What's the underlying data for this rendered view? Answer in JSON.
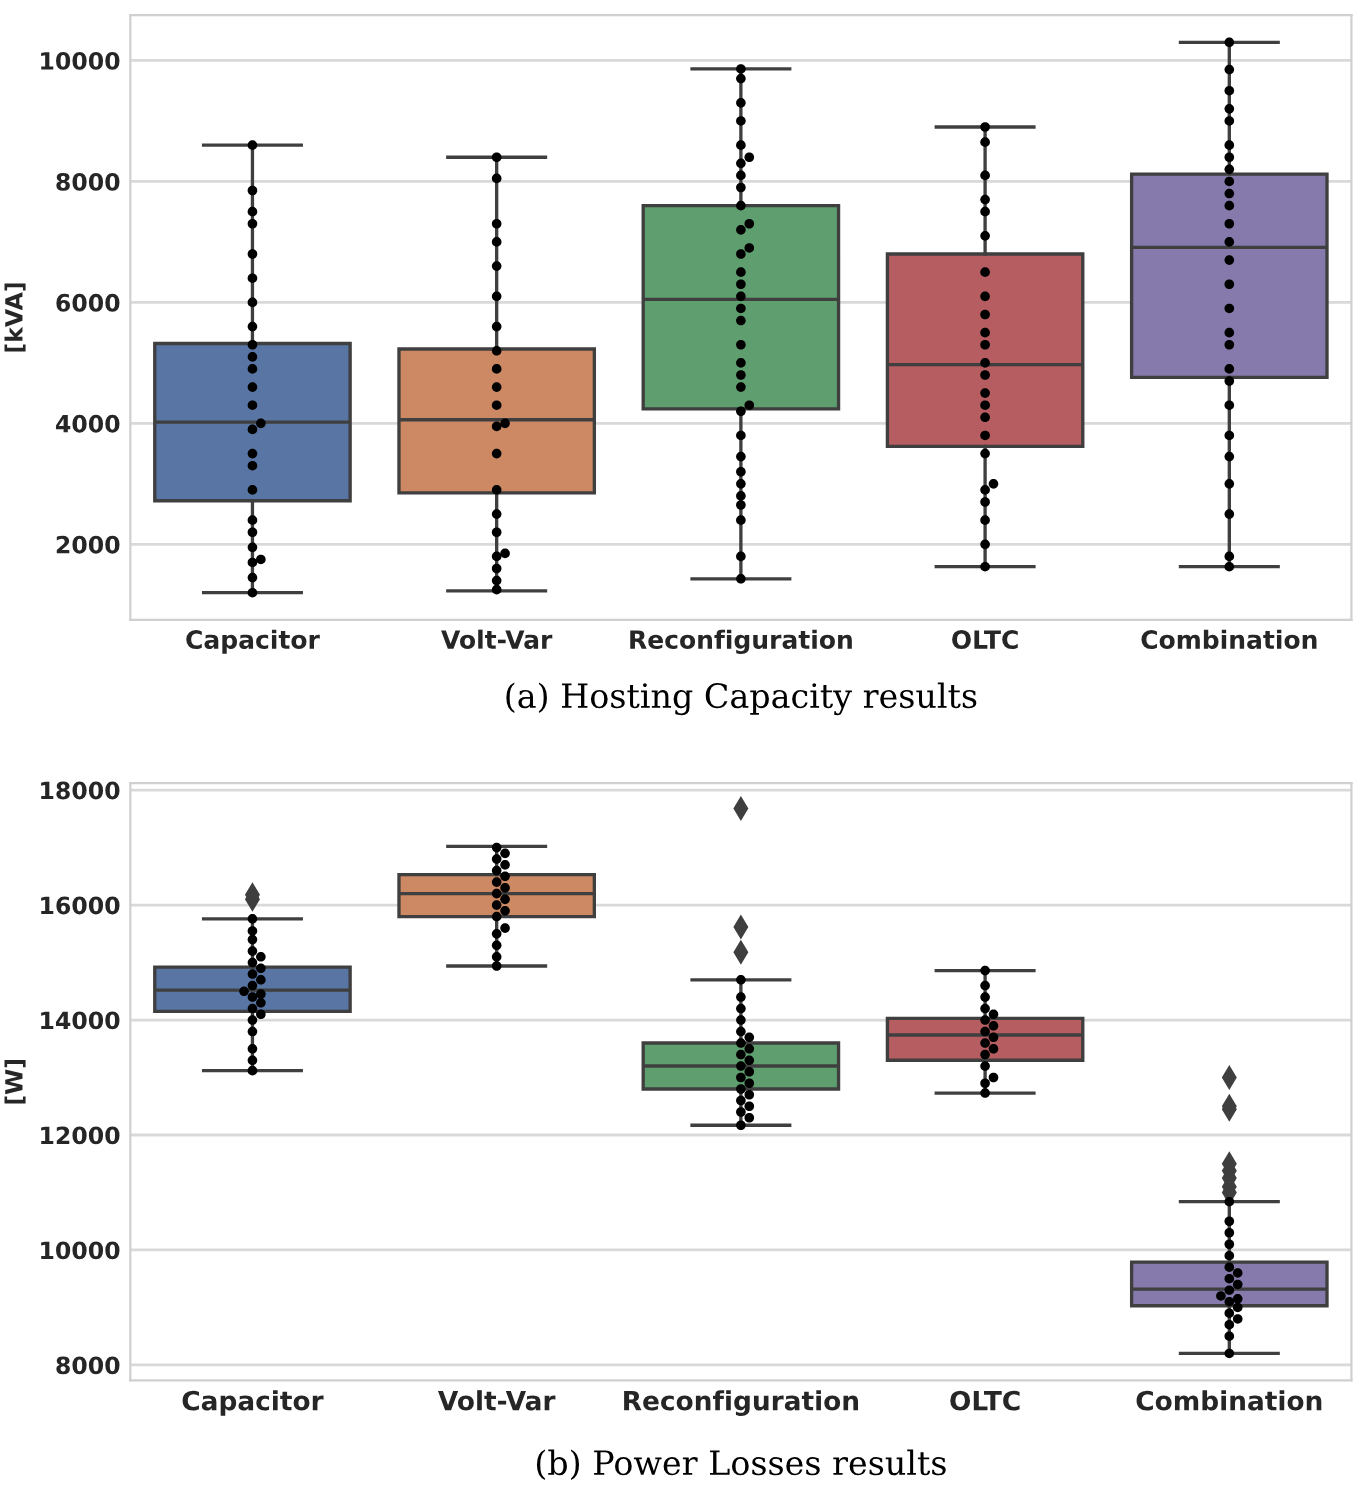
{
  "chart_data": [
    {
      "type": "box",
      "ylabel": "[kVA]",
      "annotations": [
        "(a) Hosting Capacity results"
      ],
      "categories": [
        "Capacitor",
        "Volt-Var",
        "Reconfiguration",
        "OLTC",
        "Combination"
      ],
      "colors": [
        "#5875a4",
        "#cc8963",
        "#5f9e6e",
        "#b55d60",
        "#857aab"
      ],
      "boxes": [
        {
          "low": 1200,
          "q1": 2720,
          "median": 4020,
          "q3": 5320,
          "high": 8600
        },
        {
          "low": 1230,
          "q1": 2850,
          "median": 4060,
          "q3": 5230,
          "high": 8400
        },
        {
          "low": 1430,
          "q1": 4240,
          "median": 6050,
          "q3": 7600,
          "high": 9860
        },
        {
          "low": 1630,
          "q1": 3620,
          "median": 4970,
          "q3": 6800,
          "high": 8900
        },
        {
          "low": 1630,
          "q1": 4760,
          "median": 6910,
          "q3": 8120,
          "high": 10300
        }
      ],
      "series": [
        {
          "type": "scatter",
          "color": "#000000",
          "marker": "circle",
          "x": [
            "Capacitor",
            "Capacitor",
            "Capacitor",
            "Capacitor",
            "Capacitor",
            "Capacitor",
            "Capacitor",
            "Capacitor",
            "Capacitor",
            "Capacitor",
            "Capacitor",
            "Capacitor",
            "Capacitor",
            "Capacitor",
            "Capacitor",
            "Capacitor",
            "Capacitor",
            "Capacitor",
            "Capacitor",
            "Capacitor",
            "Capacitor",
            "Capacitor",
            "Capacitor",
            "Capacitor",
            "Capacitor",
            "Volt-Var",
            "Volt-Var",
            "Volt-Var",
            "Volt-Var",
            "Volt-Var",
            "Volt-Var",
            "Volt-Var",
            "Volt-Var",
            "Volt-Var",
            "Volt-Var",
            "Volt-Var",
            "Volt-Var",
            "Volt-Var",
            "Volt-Var",
            "Volt-Var",
            "Volt-Var",
            "Volt-Var",
            "Volt-Var",
            "Volt-Var",
            "Volt-Var",
            "Volt-Var",
            "Volt-Var",
            "Reconfiguration",
            "Reconfiguration",
            "Reconfiguration",
            "Reconfiguration",
            "Reconfiguration",
            "Reconfiguration",
            "Reconfiguration",
            "Reconfiguration",
            "Reconfiguration",
            "Reconfiguration",
            "Reconfiguration",
            "Reconfiguration",
            "Reconfiguration",
            "Reconfiguration",
            "Reconfiguration",
            "Reconfiguration",
            "Reconfiguration",
            "Reconfiguration",
            "Reconfiguration",
            "Reconfiguration",
            "Reconfiguration",
            "Reconfiguration",
            "Reconfiguration",
            "Reconfiguration",
            "Reconfiguration",
            "Reconfiguration",
            "Reconfiguration",
            "Reconfiguration",
            "Reconfiguration",
            "Reconfiguration",
            "Reconfiguration",
            "Reconfiguration",
            "Reconfiguration",
            "Reconfiguration",
            "OLTC",
            "OLTC",
            "OLTC",
            "OLTC",
            "OLTC",
            "OLTC",
            "OLTC",
            "OLTC",
            "OLTC",
            "OLTC",
            "OLTC",
            "OLTC",
            "OLTC",
            "OLTC",
            "OLTC",
            "OLTC",
            "OLTC",
            "OLTC",
            "OLTC",
            "OLTC",
            "OLTC",
            "OLTC",
            "OLTC",
            "OLTC",
            "Combination",
            "Combination",
            "Combination",
            "Combination",
            "Combination",
            "Combination",
            "Combination",
            "Combination",
            "Combination",
            "Combination",
            "Combination",
            "Combination",
            "Combination",
            "Combination",
            "Combination",
            "Combination",
            "Combination",
            "Combination",
            "Combination",
            "Combination",
            "Combination",
            "Combination",
            "Combination",
            "Combination",
            "Combination",
            "Combination",
            "Combination"
          ],
          "values": [
            1200,
            1450,
            1700,
            1750,
            1950,
            2200,
            2400,
            2900,
            3300,
            3500,
            3900,
            4000,
            4300,
            4600,
            4900,
            5100,
            5300,
            5600,
            6000,
            6400,
            6800,
            7300,
            7500,
            7850,
            8600,
            1250,
            1400,
            1600,
            1800,
            1850,
            2200,
            2500,
            2900,
            3500,
            3950,
            4000,
            4300,
            4600,
            4900,
            5200,
            5600,
            6100,
            6600,
            7000,
            7300,
            8050,
            8400,
            1430,
            1800,
            2400,
            2650,
            2800,
            3000,
            3200,
            3450,
            3800,
            4200,
            4300,
            4600,
            4800,
            5000,
            5300,
            5700,
            5900,
            6100,
            6300,
            6500,
            6800,
            6900,
            7200,
            7300,
            7600,
            7900,
            8100,
            8300,
            8400,
            8600,
            9000,
            9300,
            9700,
            9860,
            1630,
            2000,
            2400,
            2700,
            2900,
            3000,
            3500,
            3800,
            4100,
            4300,
            4500,
            4800,
            5000,
            5300,
            5500,
            5800,
            6100,
            6500,
            7100,
            7500,
            7700,
            8100,
            8650,
            8900,
            1630,
            1800,
            2500,
            3000,
            3450,
            3800,
            4300,
            4700,
            4900,
            5300,
            5500,
            5900,
            6300,
            6700,
            7000,
            7300,
            7600,
            7800,
            8000,
            8200,
            8400,
            8600,
            9000,
            9200,
            9500,
            9850,
            10300
          ]
        }
      ],
      "ylim": [
        750,
        10750
      ],
      "yticks": [
        2000,
        4000,
        6000,
        8000,
        10000
      ],
      "grid": "y",
      "legend": false
    },
    {
      "type": "box",
      "ylabel": "[W]",
      "annotations": [
        "(b) Power Losses results"
      ],
      "categories": [
        "Capacitor",
        "Volt-Var",
        "Reconfiguration",
        "OLTC",
        "Combination"
      ],
      "colors": [
        "#5875a4",
        "#cc8963",
        "#5f9e6e",
        "#b55d60",
        "#857aab"
      ],
      "boxes": [
        {
          "low": 13120,
          "q1": 14150,
          "median": 14520,
          "q3": 14920,
          "high": 15760,
          "outliers": [
            16100,
            16180
          ]
        },
        {
          "low": 14940,
          "q1": 15800,
          "median": 16200,
          "q3": 16530,
          "high": 17020
        },
        {
          "low": 12170,
          "q1": 12800,
          "median": 13200,
          "q3": 13600,
          "high": 14700,
          "outliers": [
            15180,
            15620,
            17680
          ]
        },
        {
          "low": 12730,
          "q1": 13300,
          "median": 13740,
          "q3": 14030,
          "high": 14860
        },
        {
          "low": 8200,
          "q1": 9030,
          "median": 9320,
          "q3": 9790,
          "high": 10840,
          "outliers": [
            11000,
            11100,
            11250,
            11380,
            11500,
            12450,
            12500,
            13000
          ]
        }
      ],
      "series": [
        {
          "type": "scatter",
          "color": "#000000",
          "marker": "circle",
          "x": [
            "Capacitor",
            "Capacitor",
            "Capacitor",
            "Capacitor",
            "Capacitor",
            "Capacitor",
            "Capacitor",
            "Capacitor",
            "Capacitor",
            "Capacitor",
            "Capacitor",
            "Capacitor",
            "Capacitor",
            "Capacitor",
            "Capacitor",
            "Capacitor",
            "Capacitor",
            "Capacitor",
            "Capacitor",
            "Capacitor",
            "Capacitor",
            "Volt-Var",
            "Volt-Var",
            "Volt-Var",
            "Volt-Var",
            "Volt-Var",
            "Volt-Var",
            "Volt-Var",
            "Volt-Var",
            "Volt-Var",
            "Volt-Var",
            "Volt-Var",
            "Volt-Var",
            "Volt-Var",
            "Volt-Var",
            "Volt-Var",
            "Volt-Var",
            "Volt-Var",
            "Volt-Var",
            "Reconfiguration",
            "Reconfiguration",
            "Reconfiguration",
            "Reconfiguration",
            "Reconfiguration",
            "Reconfiguration",
            "Reconfiguration",
            "Reconfiguration",
            "Reconfiguration",
            "Reconfiguration",
            "Reconfiguration",
            "Reconfiguration",
            "Reconfiguration",
            "Reconfiguration",
            "Reconfiguration",
            "Reconfiguration",
            "Reconfiguration",
            "Reconfiguration",
            "Reconfiguration",
            "Reconfiguration",
            "Reconfiguration",
            "OLTC",
            "OLTC",
            "OLTC",
            "OLTC",
            "OLTC",
            "OLTC",
            "OLTC",
            "OLTC",
            "OLTC",
            "OLTC",
            "OLTC",
            "OLTC",
            "OLTC",
            "OLTC",
            "OLTC",
            "OLTC",
            "Combination",
            "Combination",
            "Combination",
            "Combination",
            "Combination",
            "Combination",
            "Combination",
            "Combination",
            "Combination",
            "Combination",
            "Combination",
            "Combination",
            "Combination",
            "Combination",
            "Combination",
            "Combination",
            "Combination",
            "Combination",
            "Combination"
          ],
          "values": [
            13120,
            13300,
            13500,
            13800,
            14000,
            14100,
            14200,
            14300,
            14400,
            14450,
            14500,
            14600,
            14700,
            14800,
            14900,
            15000,
            15100,
            15200,
            15400,
            15550,
            15760,
            14940,
            15100,
            15300,
            15500,
            15600,
            15800,
            15900,
            16000,
            16100,
            16200,
            16300,
            16400,
            16500,
            16600,
            16700,
            16800,
            16900,
            17000,
            12170,
            12300,
            12400,
            12500,
            12600,
            12700,
            12800,
            12900,
            13000,
            13100,
            13200,
            13300,
            13400,
            13500,
            13600,
            13700,
            13800,
            14000,
            14200,
            14400,
            14700,
            12730,
            12900,
            13000,
            13200,
            13400,
            13500,
            13600,
            13700,
            13800,
            13900,
            14000,
            14100,
            14200,
            14400,
            14600,
            14860,
            8200,
            8500,
            8700,
            8800,
            8900,
            9000,
            9100,
            9150,
            9200,
            9300,
            9400,
            9500,
            9600,
            9700,
            9900,
            10100,
            10300,
            10500,
            10840
          ]
        }
      ],
      "ylim": [
        7730,
        18120
      ],
      "yticks": [
        8000,
        10000,
        12000,
        14000,
        16000,
        18000
      ],
      "grid": "y",
      "legend": false
    }
  ]
}
